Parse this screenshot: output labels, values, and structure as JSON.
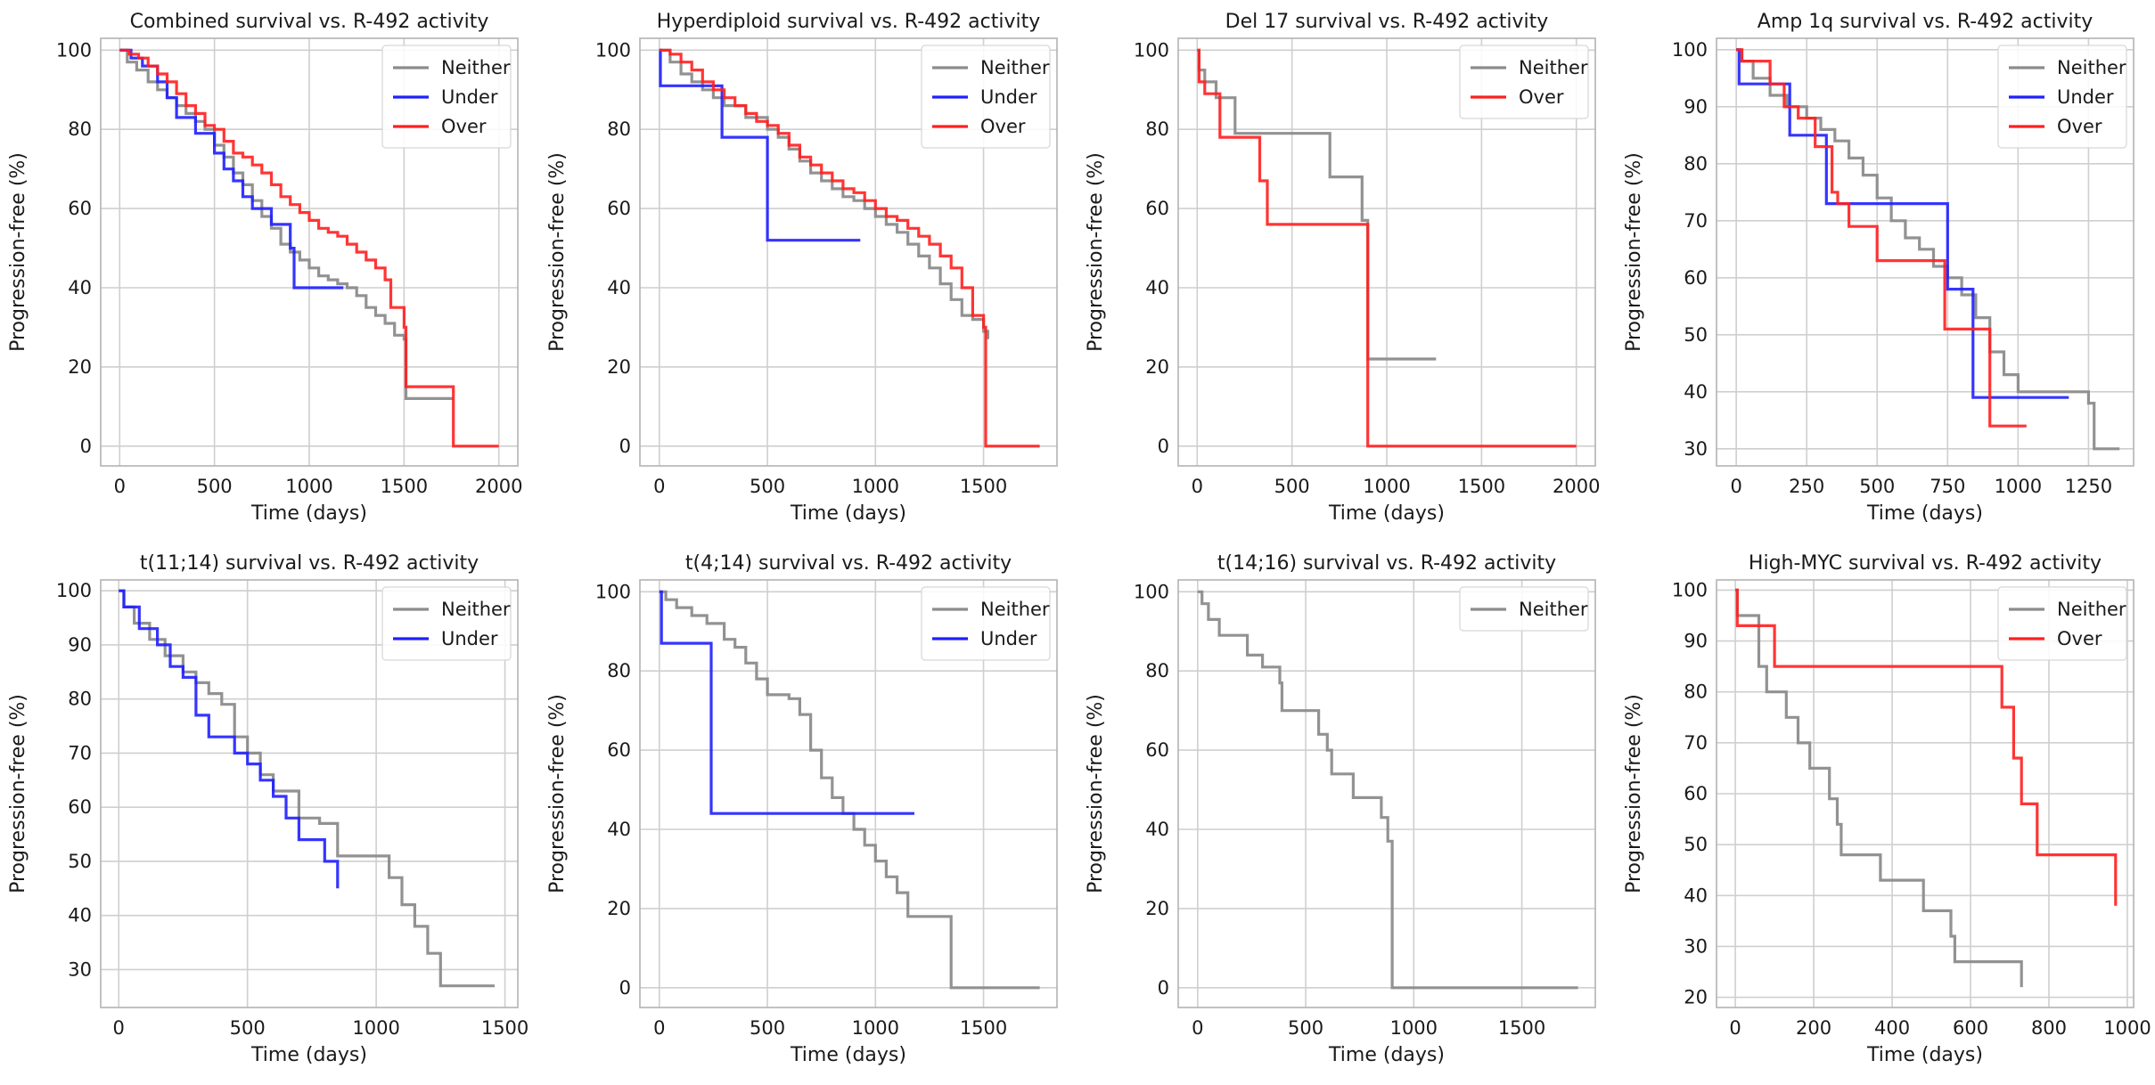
{
  "figure": {
    "colors": {
      "Neither": "#8c8c8c",
      "Under": "#1f1fff",
      "Over": "#ff1f1f",
      "grid": "#cfcfcf",
      "frame": "#b3b3b3",
      "text": "#1a1a1a"
    }
  },
  "chart_data": [
    {
      "type": "line",
      "step": true,
      "title": "Combined survival vs. R-492 activity",
      "xlabel": "Time (days)",
      "ylabel": "Progression-free (%)",
      "xlim": [
        -100,
        2100
      ],
      "ylim": [
        -5,
        103
      ],
      "xticks": [
        0,
        500,
        1000,
        1500,
        2000
      ],
      "yticks": [
        0,
        20,
        40,
        60,
        80,
        100
      ],
      "legend": [
        "Neither",
        "Under",
        "Over"
      ],
      "legend_position": "top-right",
      "series": [
        {
          "name": "Neither",
          "x": [
            0,
            40,
            90,
            150,
            200,
            250,
            300,
            350,
            400,
            450,
            500,
            550,
            600,
            650,
            700,
            750,
            800,
            850,
            900,
            950,
            1000,
            1050,
            1100,
            1150,
            1200,
            1250,
            1300,
            1350,
            1400,
            1450,
            1500,
            1510,
            1600,
            1760
          ],
          "y": [
            100,
            97,
            95,
            92,
            90,
            88,
            86,
            84,
            82,
            80,
            76,
            73,
            69,
            66,
            62,
            58,
            55,
            51,
            49,
            47,
            45,
            43,
            42,
            41,
            40,
            38,
            35,
            33,
            31,
            28,
            27,
            12,
            12,
            12
          ]
        },
        {
          "name": "Under",
          "x": [
            0,
            60,
            120,
            200,
            250,
            300,
            400,
            500,
            550,
            600,
            650,
            700,
            800,
            900,
            920,
            1180
          ],
          "y": [
            100,
            98,
            96,
            92,
            88,
            83,
            79,
            74,
            70,
            67,
            63,
            60,
            56,
            50,
            40,
            40
          ]
        },
        {
          "name": "Over",
          "x": [
            0,
            50,
            100,
            150,
            200,
            250,
            300,
            350,
            400,
            450,
            500,
            550,
            600,
            650,
            700,
            750,
            800,
            850,
            900,
            950,
            1000,
            1050,
            1100,
            1150,
            1200,
            1250,
            1300,
            1350,
            1400,
            1430,
            1500,
            1510,
            1760,
            2000
          ],
          "y": [
            100,
            99,
            98,
            96,
            94,
            92,
            89,
            86,
            84,
            81,
            80,
            77,
            74,
            73,
            71,
            69,
            66,
            63,
            61,
            59,
            57,
            55,
            54,
            53,
            51,
            49,
            47,
            45,
            42,
            35,
            30,
            15,
            0,
            0
          ]
        }
      ]
    },
    {
      "type": "line",
      "step": true,
      "title": "Hyperdiploid survival vs. R-492 activity",
      "xlabel": "Time (days)",
      "ylabel": "Progression-free (%)",
      "xlim": [
        -90,
        1840
      ],
      "ylim": [
        -5,
        103
      ],
      "xticks": [
        0,
        500,
        1000,
        1500
      ],
      "yticks": [
        0,
        20,
        40,
        60,
        80,
        100
      ],
      "legend": [
        "Neither",
        "Under",
        "Over"
      ],
      "legend_position": "top-right",
      "series": [
        {
          "name": "Neither",
          "x": [
            0,
            50,
            100,
            150,
            200,
            250,
            300,
            400,
            500,
            550,
            600,
            650,
            700,
            750,
            800,
            850,
            900,
            950,
            1000,
            1050,
            1100,
            1150,
            1200,
            1250,
            1300,
            1350,
            1400,
            1450,
            1500,
            1520
          ],
          "y": [
            100,
            97,
            94,
            92,
            90,
            88,
            86,
            83,
            80,
            78,
            75,
            72,
            69,
            67,
            65,
            63,
            62,
            60,
            58,
            56,
            54,
            51,
            48,
            45,
            41,
            37,
            33,
            32,
            29,
            27
          ]
        },
        {
          "name": "Under",
          "x": [
            0,
            5,
            290,
            500,
            930
          ],
          "y": [
            100,
            91,
            78,
            52,
            52
          ]
        },
        {
          "name": "Over",
          "x": [
            0,
            50,
            100,
            150,
            200,
            250,
            300,
            350,
            400,
            450,
            500,
            550,
            600,
            650,
            700,
            750,
            800,
            850,
            900,
            950,
            1000,
            1050,
            1100,
            1150,
            1200,
            1250,
            1300,
            1350,
            1400,
            1450,
            1500,
            1510,
            1760
          ],
          "y": [
            100,
            99,
            97,
            95,
            92,
            90,
            88,
            86,
            84,
            82,
            81,
            79,
            76,
            73,
            71,
            69,
            67,
            65,
            64,
            62,
            60,
            58,
            57,
            55,
            53,
            51,
            48,
            45,
            40,
            33,
            30,
            0,
            0
          ]
        }
      ]
    },
    {
      "type": "line",
      "step": true,
      "title": "Del 17 survival vs. R-492 activity",
      "xlabel": "Time (days)",
      "ylabel": "Progression-free (%)",
      "xlim": [
        -100,
        2100
      ],
      "ylim": [
        -5,
        103
      ],
      "xticks": [
        0,
        500,
        1000,
        1500,
        2000
      ],
      "yticks": [
        0,
        20,
        40,
        60,
        80,
        100
      ],
      "legend": [
        "Neither",
        "Over"
      ],
      "legend_position": "top-right",
      "series": [
        {
          "name": "Neither",
          "x": [
            0,
            10,
            40,
            100,
            200,
            550,
            700,
            870,
            900,
            1260
          ],
          "y": [
            100,
            95,
            92,
            88,
            79,
            79,
            68,
            57,
            22,
            22
          ]
        },
        {
          "name": "Over",
          "x": [
            0,
            10,
            40,
            120,
            330,
            370,
            900,
            2000
          ],
          "y": [
            100,
            92,
            89,
            78,
            67,
            56,
            0,
            0
          ]
        }
      ]
    },
    {
      "type": "line",
      "step": true,
      "title": "Amp 1q survival vs. R-492 activity",
      "xlabel": "Time (days)",
      "ylabel": "Progression-free (%)",
      "xlim": [
        -70,
        1410
      ],
      "ylim": [
        27,
        102
      ],
      "xticks": [
        0,
        250,
        500,
        750,
        1000,
        1250
      ],
      "yticks": [
        30,
        40,
        50,
        60,
        70,
        80,
        90,
        100
      ],
      "legend": [
        "Neither",
        "Under",
        "Over"
      ],
      "legend_position": "top-right",
      "series": [
        {
          "name": "Neither",
          "x": [
            0,
            20,
            60,
            120,
            180,
            250,
            300,
            350,
            400,
            450,
            500,
            550,
            600,
            650,
            700,
            750,
            800,
            850,
            900,
            950,
            1000,
            1250,
            1270,
            1360
          ],
          "y": [
            100,
            98,
            95,
            92,
            90,
            88,
            86,
            84,
            81,
            78,
            74,
            70,
            67,
            65,
            62,
            60,
            57,
            53,
            47,
            43,
            40,
            38,
            30,
            30
          ]
        },
        {
          "name": "Under",
          "x": [
            0,
            10,
            140,
            190,
            320,
            720,
            750,
            840,
            1180
          ],
          "y": [
            100,
            94,
            94,
            85,
            73,
            73,
            58,
            39,
            39
          ]
        },
        {
          "name": "Over",
          "x": [
            0,
            20,
            120,
            170,
            220,
            280,
            340,
            360,
            400,
            500,
            560,
            740,
            760,
            900,
            1030
          ],
          "y": [
            100,
            98,
            94,
            90,
            88,
            83,
            75,
            73,
            69,
            63,
            63,
            51,
            51,
            34,
            34
          ]
        }
      ]
    },
    {
      "type": "line",
      "step": true,
      "title": "t(11;14) survival vs. R-492 activity",
      "xlabel": "Time (days)",
      "ylabel": "Progression-free (%)",
      "xlim": [
        -70,
        1550
      ],
      "ylim": [
        23,
        102
      ],
      "xticks": [
        0,
        500,
        1000,
        1500
      ],
      "yticks": [
        30,
        40,
        50,
        60,
        70,
        80,
        90,
        100
      ],
      "legend": [
        "Neither",
        "Under"
      ],
      "legend_position": "top-right",
      "series": [
        {
          "name": "Neither",
          "x": [
            0,
            20,
            60,
            120,
            180,
            250,
            300,
            350,
            400,
            450,
            500,
            550,
            600,
            700,
            780,
            850,
            1000,
            1050,
            1100,
            1150,
            1200,
            1250,
            1460
          ],
          "y": [
            100,
            97,
            94,
            91,
            88,
            85,
            83,
            81,
            79,
            73,
            70,
            66,
            63,
            58,
            57,
            51,
            51,
            47,
            42,
            38,
            33,
            27,
            27
          ]
        },
        {
          "name": "Under",
          "x": [
            0,
            20,
            80,
            150,
            200,
            250,
            300,
            350,
            450,
            500,
            550,
            600,
            650,
            700,
            800,
            850
          ],
          "y": [
            100,
            97,
            93,
            90,
            86,
            84,
            77,
            73,
            70,
            68,
            65,
            62,
            58,
            54,
            50,
            45
          ]
        }
      ]
    },
    {
      "type": "line",
      "step": true,
      "title": "t(4;14) survival vs. R-492 activity",
      "xlabel": "Time (days)",
      "ylabel": "Progression-free (%)",
      "xlim": [
        -90,
        1840
      ],
      "ylim": [
        -5,
        103
      ],
      "xticks": [
        0,
        500,
        1000,
        1500
      ],
      "yticks": [
        0,
        20,
        40,
        60,
        80,
        100
      ],
      "legend": [
        "Neither",
        "Under"
      ],
      "legend_position": "top-right",
      "series": [
        {
          "name": "Neither",
          "x": [
            0,
            30,
            80,
            150,
            220,
            300,
            350,
            400,
            450,
            500,
            600,
            650,
            700,
            750,
            800,
            850,
            900,
            950,
            1000,
            1050,
            1100,
            1150,
            1350,
            1760
          ],
          "y": [
            100,
            98,
            96,
            94,
            92,
            88,
            86,
            82,
            78,
            74,
            73,
            69,
            60,
            53,
            48,
            44,
            40,
            36,
            32,
            28,
            24,
            18,
            0,
            0
          ]
        },
        {
          "name": "Under",
          "x": [
            0,
            10,
            240,
            1180
          ],
          "y": [
            100,
            87,
            44,
            44
          ]
        }
      ]
    },
    {
      "type": "line",
      "step": true,
      "title": "t(14;16) survival vs. R-492 activity",
      "xlabel": "Time (days)",
      "ylabel": "Progression-free (%)",
      "xlim": [
        -90,
        1840
      ],
      "ylim": [
        -5,
        103
      ],
      "xticks": [
        0,
        500,
        1000,
        1500
      ],
      "yticks": [
        0,
        20,
        40,
        60,
        80,
        100
      ],
      "legend": [
        "Neither"
      ],
      "legend_position": "top-right",
      "series": [
        {
          "name": "Neither",
          "x": [
            0,
            20,
            50,
            100,
            230,
            300,
            380,
            390,
            540,
            560,
            600,
            620,
            720,
            850,
            880,
            890,
            900,
            1760
          ],
          "y": [
            100,
            97,
            93,
            89,
            84,
            81,
            77,
            70,
            70,
            64,
            60,
            54,
            48,
            43,
            37,
            37,
            0,
            0
          ]
        }
      ]
    },
    {
      "type": "line",
      "step": true,
      "title": "High-MYC survival vs. R-492 activity",
      "xlabel": "Time (days)",
      "ylabel": "Progression-free (%)",
      "xlim": [
        -48,
        1016
      ],
      "ylim": [
        18,
        102
      ],
      "xticks": [
        0,
        200,
        400,
        600,
        800,
        1000
      ],
      "yticks": [
        20,
        30,
        40,
        50,
        60,
        70,
        80,
        90,
        100
      ],
      "legend": [
        "Neither",
        "Over"
      ],
      "legend_position": "top-right",
      "series": [
        {
          "name": "Neither",
          "x": [
            0,
            5,
            60,
            80,
            100,
            130,
            160,
            190,
            240,
            260,
            270,
            370,
            480,
            550,
            560,
            730
          ],
          "y": [
            100,
            95,
            85,
            80,
            80,
            75,
            70,
            65,
            59,
            54,
            48,
            43,
            37,
            32,
            27,
            22
          ]
        },
        {
          "name": "Over",
          "x": [
            0,
            5,
            100,
            470,
            680,
            710,
            730,
            770,
            970
          ],
          "y": [
            100,
            93,
            85,
            85,
            77,
            67,
            58,
            48,
            38
          ]
        }
      ]
    }
  ]
}
